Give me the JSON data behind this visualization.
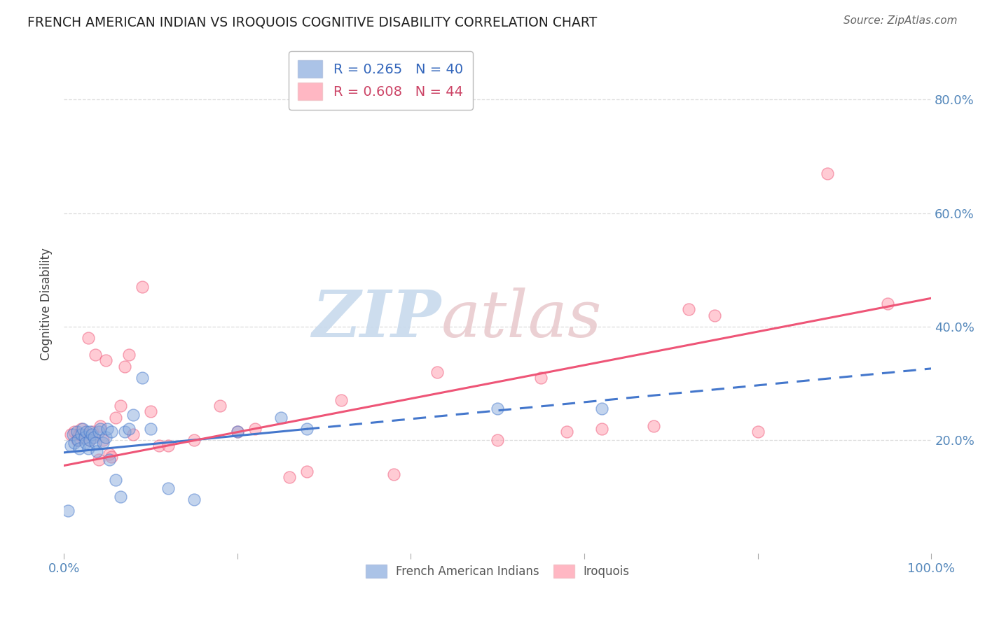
{
  "title": "FRENCH AMERICAN INDIAN VS IROQUOIS COGNITIVE DISABILITY CORRELATION CHART",
  "source": "Source: ZipAtlas.com",
  "ylabel": "Cognitive Disability",
  "xlim": [
    0,
    1.0
  ],
  "ylim": [
    0.0,
    0.88
  ],
  "blue_color": "#88AADD",
  "pink_color": "#FF99AA",
  "blue_line_color": "#4477CC",
  "pink_line_color": "#EE5577",
  "background_color": "#FFFFFF",
  "grid_color": "#DDDDDD",
  "title_color": "#222222",
  "watermark_zip_color": "#C5D8EC",
  "watermark_atlas_color": "#E8C8CC",
  "blue_scatter_x": [
    0.005,
    0.008,
    0.01,
    0.012,
    0.015,
    0.016,
    0.018,
    0.02,
    0.022,
    0.024,
    0.025,
    0.026,
    0.028,
    0.03,
    0.03,
    0.032,
    0.035,
    0.036,
    0.038,
    0.04,
    0.042,
    0.045,
    0.048,
    0.05,
    0.052,
    0.055,
    0.06,
    0.065,
    0.07,
    0.075,
    0.08,
    0.09,
    0.1,
    0.12,
    0.15,
    0.2,
    0.25,
    0.28,
    0.5,
    0.62
  ],
  "blue_scatter_y": [
    0.075,
    0.19,
    0.21,
    0.195,
    0.215,
    0.2,
    0.185,
    0.21,
    0.22,
    0.205,
    0.195,
    0.215,
    0.185,
    0.215,
    0.2,
    0.21,
    0.205,
    0.195,
    0.18,
    0.215,
    0.22,
    0.195,
    0.205,
    0.22,
    0.165,
    0.215,
    0.13,
    0.1,
    0.215,
    0.22,
    0.245,
    0.31,
    0.22,
    0.115,
    0.095,
    0.215,
    0.24,
    0.22,
    0.255,
    0.255
  ],
  "pink_scatter_x": [
    0.008,
    0.012,
    0.015,
    0.018,
    0.02,
    0.025,
    0.028,
    0.03,
    0.033,
    0.036,
    0.04,
    0.042,
    0.045,
    0.048,
    0.052,
    0.055,
    0.06,
    0.065,
    0.07,
    0.075,
    0.08,
    0.09,
    0.1,
    0.11,
    0.12,
    0.15,
    0.18,
    0.2,
    0.22,
    0.26,
    0.28,
    0.32,
    0.38,
    0.43,
    0.5,
    0.55,
    0.58,
    0.62,
    0.68,
    0.72,
    0.75,
    0.8,
    0.88,
    0.95
  ],
  "pink_scatter_y": [
    0.21,
    0.215,
    0.2,
    0.21,
    0.22,
    0.21,
    0.38,
    0.2,
    0.215,
    0.35,
    0.165,
    0.225,
    0.2,
    0.34,
    0.175,
    0.17,
    0.24,
    0.26,
    0.33,
    0.35,
    0.21,
    0.47,
    0.25,
    0.19,
    0.19,
    0.2,
    0.26,
    0.215,
    0.22,
    0.135,
    0.145,
    0.27,
    0.14,
    0.32,
    0.2,
    0.31,
    0.215,
    0.22,
    0.225,
    0.43,
    0.42,
    0.215,
    0.67,
    0.44
  ],
  "blue_R": 0.265,
  "blue_N": 40,
  "pink_R": 0.608,
  "pink_N": 44,
  "blue_intercept": 0.178,
  "blue_slope": 0.148,
  "pink_intercept": 0.155,
  "pink_slope": 0.295
}
